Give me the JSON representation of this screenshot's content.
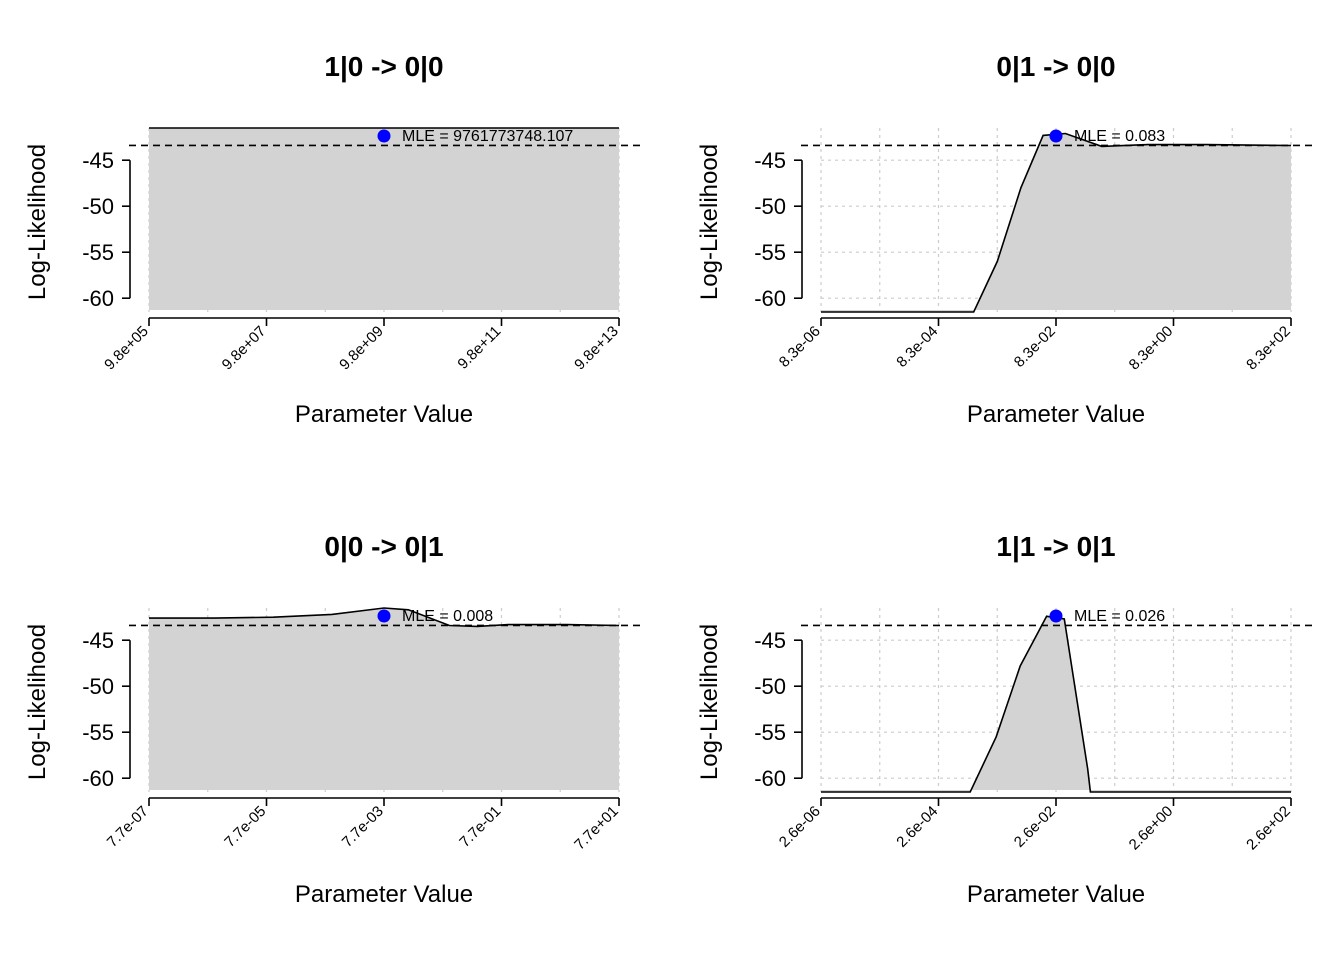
{
  "chart_data": [
    {
      "type": "area",
      "title": "1|0 -> 0|0",
      "xlabel": "Parameter Value",
      "ylabel": "Log-Likelihood",
      "x_scale": "log10",
      "x_ticks": [
        "9.8e+05",
        "9.8e+07",
        "9.8e+09",
        "9.8e+11",
        "9.8e+13"
      ],
      "x_tick_values": [
        980000,
        98000000,
        9800000000,
        980000000000,
        98000000000000
      ],
      "xlim": [
        980000,
        98000000000000
      ],
      "y_ticks": [
        "-45",
        "-50",
        "-55",
        "-60"
      ],
      "y_tick_values": [
        -45,
        -50,
        -55,
        -60
      ],
      "ylim": [
        -61.5,
        -41.5
      ],
      "threshold": -43.4,
      "grid": true,
      "x": [
        980000,
        98000000,
        9800000000,
        980000000000,
        98000000000000
      ],
      "y": [
        -41.5,
        -41.5,
        -41.5,
        -41.5,
        -41.5
      ],
      "mle": {
        "x": 9800000000,
        "y": -41.5,
        "label": "MLE = 9761773748.107"
      }
    },
    {
      "type": "area",
      "title": "0|1 -> 0|0",
      "xlabel": "Parameter Value",
      "ylabel": "Log-Likelihood",
      "x_scale": "log10",
      "x_ticks": [
        "8.3e-06",
        "8.3e-04",
        "8.3e-02",
        "8.3e+00",
        "8.3e+02"
      ],
      "x_tick_values": [
        8.3e-06,
        0.00083,
        0.083,
        8.3,
        830
      ],
      "xlim": [
        8.3e-06,
        830
      ],
      "y_ticks": [
        "-45",
        "-50",
        "-55",
        "-60"
      ],
      "y_tick_values": [
        -45,
        -50,
        -55,
        -60
      ],
      "ylim": [
        -61.5,
        -41.5
      ],
      "threshold": -43.4,
      "grid": true,
      "x": [
        8.3e-06,
        0.0033,
        0.0083,
        0.021,
        0.05,
        0.12,
        0.5,
        3,
        30,
        830
      ],
      "y": [
        -61.5,
        -61.5,
        -56,
        -48,
        -42.3,
        -42.1,
        -43.5,
        -43.3,
        -43.3,
        -43.4
      ],
      "mle": {
        "x": 0.083,
        "y": -41.5,
        "label": "MLE = 0.083"
      }
    },
    {
      "type": "area",
      "title": "0|0 -> 0|1",
      "xlabel": "Parameter Value",
      "ylabel": "Log-Likelihood",
      "x_scale": "log10",
      "x_ticks": [
        "7.7e-07",
        "7.7e-05",
        "7.7e-03",
        "7.7e-01",
        "7.7e+01"
      ],
      "x_tick_values": [
        7.7e-07,
        7.7e-05,
        0.0077,
        0.77,
        77
      ],
      "xlim": [
        7.7e-07,
        77
      ],
      "y_ticks": [
        "-45",
        "-50",
        "-55",
        "-60"
      ],
      "y_tick_values": [
        -45,
        -50,
        -55,
        -60
      ],
      "ylim": [
        -61.5,
        -41.5
      ],
      "threshold": -43.4,
      "grid": true,
      "x": [
        7.7e-07,
        1e-05,
        0.0001,
        0.001,
        0.0077,
        0.02,
        0.1,
        0.3,
        1,
        10,
        77
      ],
      "y": [
        -42.6,
        -42.6,
        -42.5,
        -42.2,
        -41.5,
        -41.7,
        -43.4,
        -43.5,
        -43.3,
        -43.3,
        -43.4
      ],
      "mle": {
        "x": 0.0077,
        "y": -41.5,
        "label": "MLE = 0.008"
      }
    },
    {
      "type": "area",
      "title": "1|1 -> 0|1",
      "xlabel": "Parameter Value",
      "ylabel": "Log-Likelihood",
      "x_scale": "log10",
      "x_ticks": [
        "2.6e-06",
        "2.6e-04",
        "2.6e-02",
        "2.6e+00",
        "2.6e+02"
      ],
      "x_tick_values": [
        2.6e-06,
        0.00026,
        0.026,
        2.6,
        260
      ],
      "xlim": [
        2.6e-06,
        260
      ],
      "y_ticks": [
        "-45",
        "-50",
        "-55",
        "-60"
      ],
      "y_tick_values": [
        -45,
        -50,
        -55,
        -60
      ],
      "ylim": [
        -61.5,
        -41.5
      ],
      "threshold": -43.4,
      "grid": true,
      "x": [
        2.6e-06,
        0.0009,
        0.0025,
        0.0064,
        0.018,
        0.036,
        0.09,
        0.1,
        260
      ],
      "y": [
        -61.5,
        -61.5,
        -55.5,
        -47.8,
        -42.4,
        -42.7,
        -59,
        -61.5,
        -61.5
      ],
      "mle": {
        "x": 0.026,
        "y": -41.5,
        "label": "MLE = 0.026"
      }
    }
  ],
  "colors": {
    "fill": "#d3d3d3",
    "line": "#000000",
    "mle_point": "#0000ff",
    "grid": "#cccccc"
  }
}
